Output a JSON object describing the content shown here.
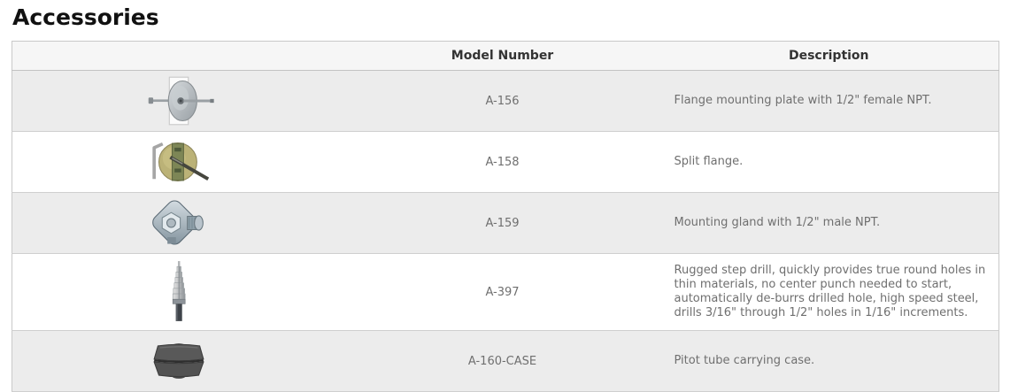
{
  "page": {
    "title": "Accessories"
  },
  "table": {
    "columns": {
      "image_label": "",
      "model_label": "Model Number",
      "description_label": "Description"
    },
    "rows": [
      {
        "image": "flange-mounting-plate",
        "model": "A-156",
        "description": "Flange mounting plate with 1/2\" female NPT."
      },
      {
        "image": "split-flange",
        "model": "A-158",
        "description": "Split flange."
      },
      {
        "image": "mounting-gland",
        "model": "A-159",
        "description": "Mounting gland with 1/2\" male NPT."
      },
      {
        "image": "step-drill",
        "model": "A-397",
        "description": "Rugged step drill, quickly provides true round holes in thin materials, no center punch needed to start, automatically de-burrs drilled hole, high speed steel, drills 3/16\" through 1/2\" holes in 1/16\" increments."
      },
      {
        "image": "pitot-tube-carrying-case",
        "model": "A-160-CASE",
        "description": "Pitot tube carrying case."
      }
    ],
    "colors": {
      "header_bg": "#f6f6f6",
      "alt_row_bg": "#ececec",
      "border": "#c9c9c9",
      "body_text": "#6f6f6f",
      "header_text": "#333333",
      "title_text": "#111111"
    }
  }
}
